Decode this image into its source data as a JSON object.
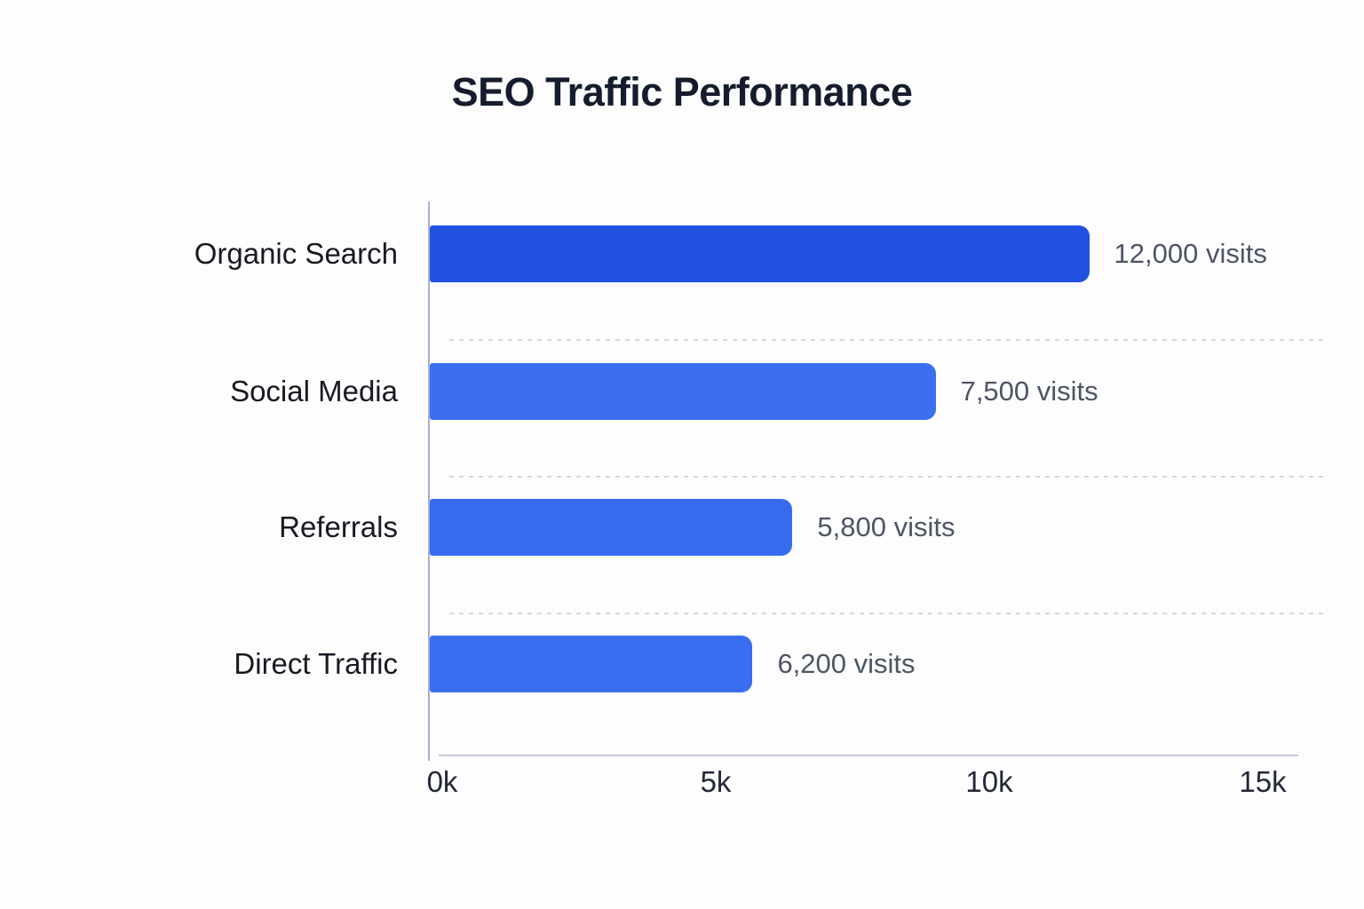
{
  "page": {
    "background_color": "#fdfdfd"
  },
  "chart_data": {
    "type": "bar",
    "orientation": "horizontal",
    "title": "SEO Traffic Performance",
    "xlabel": "",
    "ylabel": "",
    "categories": [
      "Organic Search",
      "Social Media",
      "Referrals",
      "Direct Traffic"
    ],
    "values": [
      12000,
      7500,
      5800,
      6200
    ],
    "value_labels": [
      "12,000 visits",
      "7,500 visits",
      "5,800 visits",
      "6,200 visits"
    ],
    "x_ticks": [
      "0k",
      "5k",
      "10k",
      "15k"
    ],
    "xlim": [
      0,
      15000
    ],
    "grid": "dashed horizontal separators between rows",
    "legend": "none",
    "items": [
      {
        "label": "Organic Search",
        "value": 12000,
        "value_label": "12,000 visits",
        "bar_display_pct": 76.0,
        "color": "#2250e1"
      },
      {
        "label": "Social Media",
        "value": 7500,
        "value_label": "7,500 visits",
        "bar_display_pct": 58.3,
        "color": "#3b6ff0"
      },
      {
        "label": "Referrals",
        "value": 5800,
        "value_label": "5,800 visits",
        "bar_display_pct": 41.8,
        "color": "#376bee"
      },
      {
        "label": "Direct Traffic",
        "value": 6200,
        "value_label": "6,200 visits",
        "bar_display_pct": 37.2,
        "color": "#3a6ef0"
      }
    ],
    "colors": {
      "bar_primary": "#2250e1",
      "bar_secondary": "#3b6ff0",
      "title_text": "#151c2e",
      "category_text": "#171a21",
      "value_text": "#4d5564",
      "tick_text": "#222836",
      "y_axis_line": "#a9afc9",
      "x_axis_line": "#c5cade",
      "gridline": "#d6d6d6"
    }
  }
}
